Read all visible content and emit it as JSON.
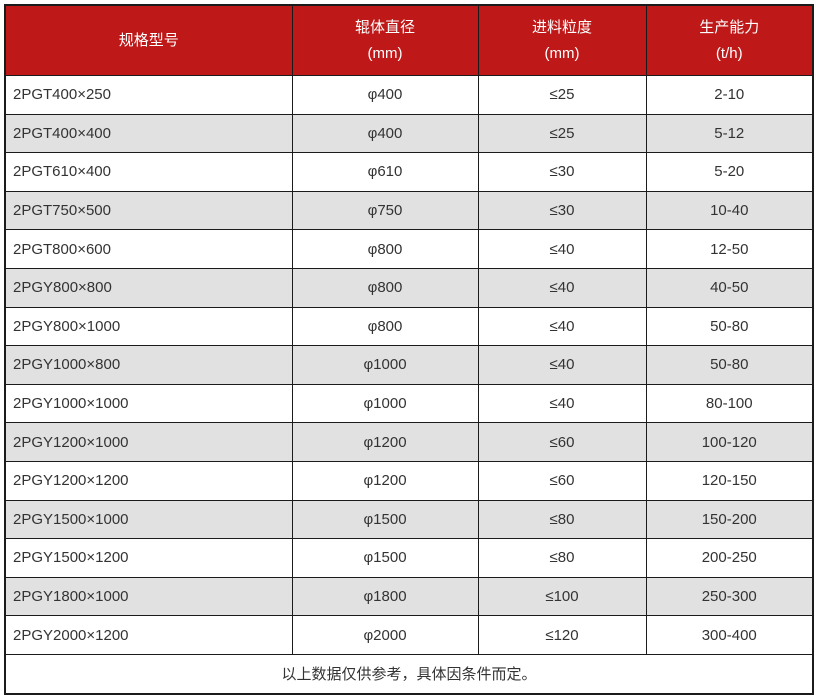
{
  "chart_data": {
    "type": "table",
    "columns": [
      {
        "label": "规格型号",
        "unit": ""
      },
      {
        "label": "辊体直径",
        "unit": "(mm)"
      },
      {
        "label": "进料粒度",
        "unit": "(mm)"
      },
      {
        "label": "生产能力",
        "unit": "(t/h)"
      }
    ],
    "rows": [
      [
        "2PGT400×250",
        "φ400",
        "≤25",
        "2-10"
      ],
      [
        "2PGT400×400",
        "φ400",
        "≤25",
        "5-12"
      ],
      [
        "2PGT610×400",
        "φ610",
        "≤30",
        "5-20"
      ],
      [
        "2PGT750×500",
        "φ750",
        "≤30",
        "10-40"
      ],
      [
        "2PGT800×600",
        "φ800",
        "≤40",
        "12-50"
      ],
      [
        "2PGY800×800",
        "φ800",
        "≤40",
        "40-50"
      ],
      [
        "2PGY800×1000",
        "φ800",
        "≤40",
        "50-80"
      ],
      [
        "2PGY1000×800",
        "φ1000",
        "≤40",
        "50-80"
      ],
      [
        "2PGY1000×1000",
        "φ1000",
        "≤40",
        "80-100"
      ],
      [
        "2PGY1200×1000",
        "φ1200",
        "≤60",
        "100-120"
      ],
      [
        "2PGY1200×1200",
        "φ1200",
        "≤60",
        "120-150"
      ],
      [
        "2PGY1500×1000",
        "φ1500",
        "≤80",
        "150-200"
      ],
      [
        "2PGY1500×1200",
        "φ1500",
        "≤80",
        "200-250"
      ],
      [
        "2PGY1800×1000",
        "φ1800",
        "≤100",
        "250-300"
      ],
      [
        "2PGY2000×1200",
        "φ2000",
        "≤120",
        "300-400"
      ]
    ],
    "footnote": "以上数据仅供参考，具体因条件而定。",
    "layout": {
      "striped": true,
      "grid": true,
      "legend": "none"
    }
  },
  "colors": {
    "header_bg": "#BE1818",
    "header_text": "#FFFFFF",
    "stripe_bg": "#E1E1E1",
    "border": "#1B1B1B",
    "body_text": "#333333"
  }
}
